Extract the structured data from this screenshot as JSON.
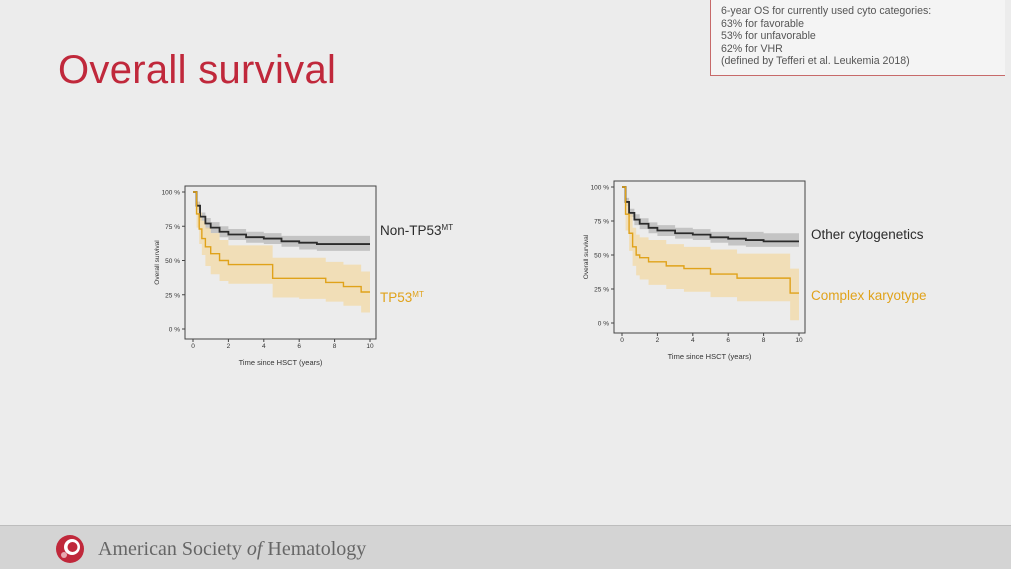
{
  "slide": {
    "title": "Overall survival",
    "note_lines": [
      "6-year OS for currently used cyto categories:",
      "63% for favorable",
      "53% for unfavorable",
      "62% for VHR",
      "(defined by Tefferi et al. Leukemia 2018)"
    ],
    "footer": {
      "pre": "American Society ",
      "of": "of",
      "post": " Hematology"
    }
  },
  "colors": {
    "title": "#c0283b",
    "black_series": "#2b2b2b",
    "orange_series": "#e0a21a",
    "grey_band": "#bdbdbd",
    "orange_band": "#f3d9a6"
  },
  "chart_data": [
    {
      "type": "line",
      "xlabel": "Time since HSCT (years)",
      "ylabel": "Overall survival",
      "xlim": [
        0,
        10
      ],
      "ylim": [
        0,
        1
      ],
      "xticks": [
        "0",
        "2",
        "4",
        "6",
        "8",
        "10"
      ],
      "yticks": [
        "0 %",
        "25 %",
        "50 %",
        "75 %",
        "100 %"
      ],
      "grid": false,
      "legend": "right",
      "series": [
        {
          "name": "Non-TP53",
          "name_sup": "MT",
          "color": "black",
          "x": [
            0,
            0.2,
            0.4,
            0.7,
            1,
            1.5,
            2,
            3,
            4,
            5,
            6,
            7,
            8,
            10
          ],
          "y": [
            1.0,
            0.9,
            0.82,
            0.77,
            0.74,
            0.71,
            0.69,
            0.67,
            0.66,
            0.64,
            0.63,
            0.62,
            0.62,
            0.62
          ],
          "lower": [
            1.0,
            0.87,
            0.79,
            0.73,
            0.7,
            0.67,
            0.65,
            0.63,
            0.62,
            0.6,
            0.58,
            0.57,
            0.57,
            0.57
          ],
          "upper": [
            1.0,
            0.93,
            0.85,
            0.81,
            0.78,
            0.75,
            0.73,
            0.71,
            0.7,
            0.68,
            0.68,
            0.68,
            0.68,
            0.67
          ]
        },
        {
          "name": "TP53",
          "name_sup": "MT",
          "color": "orange",
          "x": [
            0,
            0.2,
            0.35,
            0.5,
            0.7,
            1,
            1.5,
            2,
            3,
            4.5,
            6,
            7.5,
            8.5,
            9.5,
            10
          ],
          "y": [
            1.0,
            0.84,
            0.73,
            0.66,
            0.6,
            0.55,
            0.5,
            0.47,
            0.47,
            0.37,
            0.37,
            0.34,
            0.31,
            0.27,
            0.27
          ],
          "lower": [
            1.0,
            0.74,
            0.62,
            0.54,
            0.46,
            0.4,
            0.35,
            0.33,
            0.33,
            0.23,
            0.22,
            0.2,
            0.17,
            0.12,
            0.12
          ],
          "upper": [
            1.0,
            0.93,
            0.85,
            0.79,
            0.74,
            0.7,
            0.65,
            0.61,
            0.61,
            0.52,
            0.52,
            0.49,
            0.47,
            0.42,
            0.42
          ]
        }
      ]
    },
    {
      "type": "line",
      "xlabel": "Time since HSCT (years)",
      "ylabel": "Overall survival",
      "xlim": [
        0,
        10
      ],
      "ylim": [
        0,
        1
      ],
      "xticks": [
        "0",
        "2",
        "4",
        "6",
        "8",
        "10"
      ],
      "yticks": [
        "0 %",
        "25 %",
        "50 %",
        "75 %",
        "100 %"
      ],
      "grid": false,
      "legend": "right",
      "series": [
        {
          "name": "Other cytogenetics",
          "name_sup": "",
          "color": "black",
          "x": [
            0,
            0.2,
            0.4,
            0.7,
            1,
            1.5,
            2,
            3,
            4,
            5,
            6,
            7,
            8,
            10
          ],
          "y": [
            1.0,
            0.89,
            0.81,
            0.76,
            0.73,
            0.7,
            0.68,
            0.66,
            0.65,
            0.63,
            0.62,
            0.61,
            0.6,
            0.6
          ],
          "lower": [
            1.0,
            0.86,
            0.78,
            0.72,
            0.69,
            0.66,
            0.64,
            0.62,
            0.61,
            0.59,
            0.57,
            0.56,
            0.56,
            0.56
          ],
          "upper": [
            1.0,
            0.92,
            0.84,
            0.8,
            0.77,
            0.74,
            0.72,
            0.7,
            0.69,
            0.67,
            0.67,
            0.67,
            0.66,
            0.66
          ]
        },
        {
          "name": "Complex karyotype",
          "name_sup": "",
          "color": "orange",
          "x": [
            0,
            0.2,
            0.4,
            0.6,
            0.8,
            1,
            1.5,
            2.5,
            3.5,
            5,
            6.5,
            8,
            9.5,
            10
          ],
          "y": [
            1.0,
            0.8,
            0.66,
            0.56,
            0.5,
            0.48,
            0.45,
            0.42,
            0.4,
            0.36,
            0.33,
            0.33,
            0.22,
            0.22
          ],
          "lower": [
            1.0,
            0.68,
            0.53,
            0.42,
            0.35,
            0.32,
            0.28,
            0.25,
            0.23,
            0.19,
            0.16,
            0.16,
            0.02,
            0.02
          ],
          "upper": [
            1.0,
            0.9,
            0.8,
            0.7,
            0.65,
            0.63,
            0.61,
            0.58,
            0.56,
            0.54,
            0.51,
            0.51,
            0.4,
            0.4
          ]
        }
      ]
    }
  ]
}
